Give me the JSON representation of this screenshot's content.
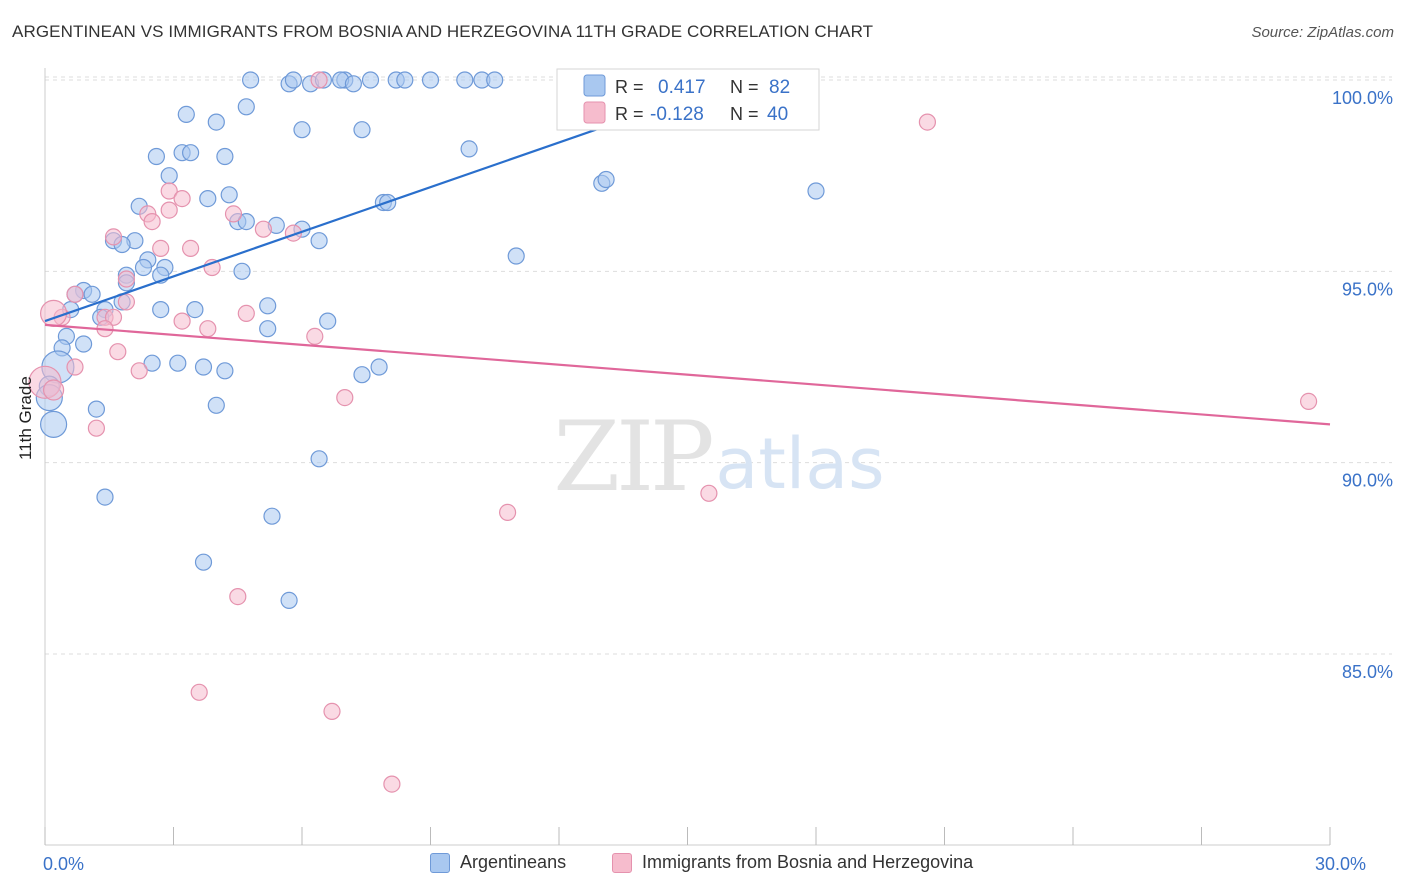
{
  "title": "ARGENTINEAN VS IMMIGRANTS FROM BOSNIA AND HERZEGOVINA 11TH GRADE CORRELATION CHART",
  "source": "Source: ZipAtlas.com",
  "watermark": {
    "zip": "ZIP",
    "atlas": "atlas"
  },
  "colors": {
    "blue_fill": "#a9c8f0",
    "blue_stroke": "#6f9ad8",
    "blue_line": "#2a6fcc",
    "pink_fill": "#f6bccd",
    "pink_stroke": "#e592ae",
    "pink_line": "#e0679a",
    "value_text": "#3a72c8",
    "grid": "#dddddd"
  },
  "legend_top": [
    {
      "r_label": "R =",
      "r_value": "0.417",
      "n_label": "N =",
      "n_value": "82",
      "series": "blue"
    },
    {
      "r_label": "R =",
      "r_value": "-0.128",
      "n_label": "N =",
      "n_value": "40",
      "series": "pink"
    }
  ],
  "legend_bottom": [
    {
      "label": "Argentineans",
      "series": "blue"
    },
    {
      "label": "Immigrants from Bosnia and Herzegovina",
      "series": "pink"
    }
  ],
  "chart_data": {
    "type": "scatter",
    "title": "ARGENTINEAN VS IMMIGRANTS FROM BOSNIA AND HERZEGOVINA 11TH GRADE CORRELATION CHART",
    "xlabel": "",
    "ylabel": "11th Grade",
    "xlim": [
      0,
      30
    ],
    "ylim": [
      80.5,
      101
    ],
    "x_tick_labels": [
      {
        "value": 0,
        "label": "0.0%"
      },
      {
        "value": 30,
        "label": "30.0%"
      }
    ],
    "y_tick_labels": [
      {
        "value": 100,
        "label": "100.0%"
      },
      {
        "value": 95,
        "label": "95.0%"
      },
      {
        "value": 90,
        "label": "90.0%"
      },
      {
        "value": 85,
        "label": "85.0%"
      }
    ],
    "x_minor_ticks": [
      0,
      3,
      6,
      9,
      12,
      15,
      18,
      21,
      24,
      27,
      30
    ],
    "grid": true,
    "series": [
      {
        "name": "Argentineans",
        "color": "blue",
        "r": 0.417,
        "n": 82,
        "trend": {
          "x0": 0,
          "y0": 93.7,
          "x1": 16.2,
          "y1": 100.0
        },
        "points": [
          [
            4.8,
            100.0
          ],
          [
            5.7,
            99.9
          ],
          [
            5.8,
            100.0
          ],
          [
            6.2,
            99.9
          ],
          [
            6.5,
            100.0
          ],
          [
            7.0,
            100.0
          ],
          [
            6.9,
            100.0
          ],
          [
            7.2,
            99.9
          ],
          [
            7.6,
            100.0
          ],
          [
            8.2,
            100.0
          ],
          [
            8.4,
            100.0
          ],
          [
            9.0,
            100.0
          ],
          [
            9.8,
            100.0
          ],
          [
            10.2,
            100.0
          ],
          [
            10.5,
            100.0
          ],
          [
            3.3,
            99.1
          ],
          [
            4.7,
            99.3
          ],
          [
            4.0,
            98.9
          ],
          [
            6.0,
            98.7
          ],
          [
            7.4,
            98.7
          ],
          [
            2.6,
            98.0
          ],
          [
            3.2,
            98.1
          ],
          [
            3.4,
            98.1
          ],
          [
            4.2,
            98.0
          ],
          [
            9.9,
            98.2
          ],
          [
            2.9,
            97.5
          ],
          [
            3.8,
            96.9
          ],
          [
            4.3,
            97.0
          ],
          [
            7.9,
            96.8
          ],
          [
            8.0,
            96.8
          ],
          [
            13.0,
            97.3
          ],
          [
            13.1,
            97.4
          ],
          [
            18.0,
            97.1
          ],
          [
            2.2,
            96.7
          ],
          [
            4.5,
            96.3
          ],
          [
            4.7,
            96.3
          ],
          [
            5.4,
            96.2
          ],
          [
            6.0,
            96.1
          ],
          [
            6.4,
            95.8
          ],
          [
            1.6,
            95.8
          ],
          [
            2.1,
            95.8
          ],
          [
            1.8,
            95.7
          ],
          [
            2.4,
            95.3
          ],
          [
            2.3,
            95.1
          ],
          [
            2.8,
            95.1
          ],
          [
            4.6,
            95.0
          ],
          [
            1.9,
            94.9
          ],
          [
            1.9,
            94.7
          ],
          [
            2.7,
            94.9
          ],
          [
            11.0,
            95.4
          ],
          [
            0.9,
            94.5
          ],
          [
            1.1,
            94.4
          ],
          [
            0.7,
            94.4
          ],
          [
            1.8,
            94.2
          ],
          [
            5.2,
            94.1
          ],
          [
            0.6,
            94.0
          ],
          [
            1.4,
            94.0
          ],
          [
            2.7,
            94.0
          ],
          [
            3.5,
            94.0
          ],
          [
            1.3,
            93.8
          ],
          [
            0.5,
            93.3
          ],
          [
            0.9,
            93.1
          ],
          [
            0.4,
            93.0
          ],
          [
            5.2,
            93.5
          ],
          [
            6.6,
            93.7
          ],
          [
            2.5,
            92.6
          ],
          [
            3.1,
            92.6
          ],
          [
            3.7,
            92.5
          ],
          [
            4.2,
            92.4
          ],
          [
            7.4,
            92.3
          ],
          [
            7.8,
            92.5
          ],
          [
            0.3,
            92.5
          ],
          [
            0.1,
            92.0
          ],
          [
            0.1,
            91.7
          ],
          [
            1.2,
            91.4
          ],
          [
            4.0,
            91.5
          ],
          [
            0.2,
            91.0
          ],
          [
            6.4,
            90.1
          ],
          [
            1.4,
            89.1
          ],
          [
            5.3,
            88.6
          ],
          [
            3.7,
            87.4
          ],
          [
            5.7,
            86.4
          ]
        ]
      },
      {
        "name": "Immigrants from Bosnia and Herzegovina",
        "color": "pink",
        "r": -0.128,
        "n": 40,
        "trend": {
          "x0": 0,
          "y0": 93.6,
          "x1": 30,
          "y1": 91.0
        },
        "points": [
          [
            6.4,
            100.0
          ],
          [
            20.6,
            98.9
          ],
          [
            2.9,
            97.1
          ],
          [
            3.2,
            96.9
          ],
          [
            2.9,
            96.6
          ],
          [
            2.4,
            96.5
          ],
          [
            4.4,
            96.5
          ],
          [
            2.5,
            96.3
          ],
          [
            5.1,
            96.1
          ],
          [
            5.8,
            96.0
          ],
          [
            1.6,
            95.9
          ],
          [
            2.7,
            95.6
          ],
          [
            3.4,
            95.6
          ],
          [
            3.9,
            95.1
          ],
          [
            1.9,
            94.8
          ],
          [
            0.7,
            94.4
          ],
          [
            1.9,
            94.2
          ],
          [
            4.7,
            93.9
          ],
          [
            1.4,
            93.8
          ],
          [
            1.6,
            93.8
          ],
          [
            3.2,
            93.7
          ],
          [
            0.4,
            93.8
          ],
          [
            0.2,
            93.9
          ],
          [
            3.8,
            93.5
          ],
          [
            1.4,
            93.5
          ],
          [
            6.3,
            93.3
          ],
          [
            1.7,
            92.9
          ],
          [
            0.7,
            92.5
          ],
          [
            2.2,
            92.4
          ],
          [
            0.0,
            92.1
          ],
          [
            0.2,
            91.9
          ],
          [
            7.0,
            91.7
          ],
          [
            29.5,
            91.6
          ],
          [
            1.2,
            90.9
          ],
          [
            15.5,
            89.2
          ],
          [
            10.8,
            88.7
          ],
          [
            4.5,
            86.5
          ],
          [
            3.6,
            84.0
          ],
          [
            6.7,
            83.5
          ],
          [
            8.1,
            81.6
          ]
        ]
      }
    ],
    "legend": "top-center"
  }
}
